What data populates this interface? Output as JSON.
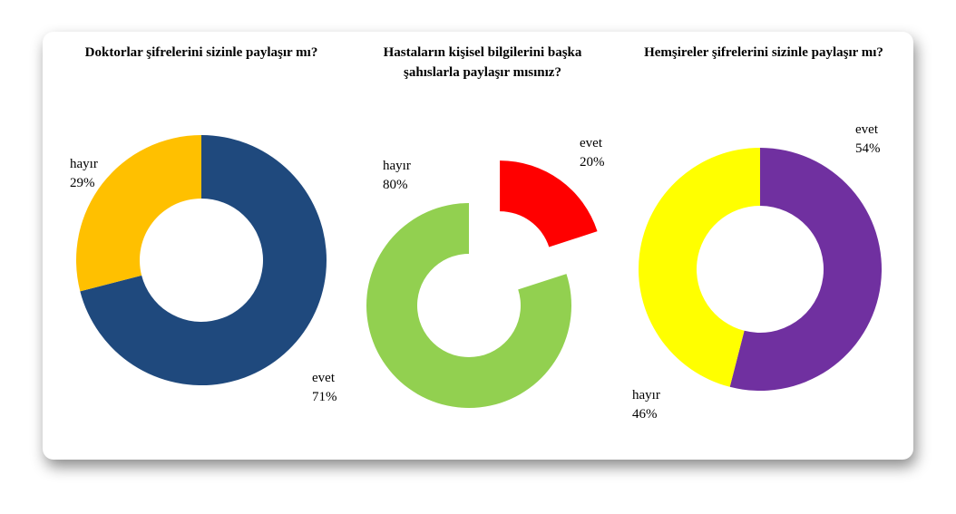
{
  "chart_data": [
    {
      "type": "donut",
      "title": "Doktorlar  şifrelerini sizinle paylaşır mı?",
      "slices": [
        {
          "label": "evet",
          "value": 71,
          "percent_label": "71%",
          "color": "#1F497D"
        },
        {
          "label": "hayır",
          "value": 29,
          "percent_label": "29%",
          "color": "#FFC000"
        }
      ]
    },
    {
      "type": "donut",
      "title": "Hastaların  kişisel bilgilerini başka şahıslarla paylaşır mısınız?",
      "slices": [
        {
          "label": "evet",
          "value": 20,
          "percent_label": "20%",
          "color": "#FF0000",
          "exploded": true
        },
        {
          "label": "hayır",
          "value": 80,
          "percent_label": "80%",
          "color": "#92D050"
        }
      ]
    },
    {
      "type": "donut",
      "title": "Hemşireler şifrelerini sizinle paylaşır mı?",
      "slices": [
        {
          "label": "evet",
          "value": 54,
          "percent_label": "54%",
          "color": "#7030A0"
        },
        {
          "label": "hayır",
          "value": 46,
          "percent_label": "46%",
          "color": "#FFFF00"
        }
      ]
    }
  ]
}
